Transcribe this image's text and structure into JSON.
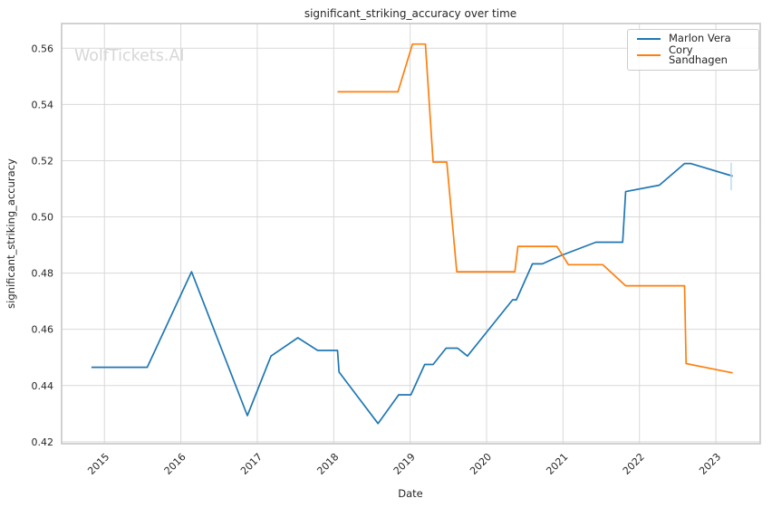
{
  "figure": {
    "title": "significant_striking_accuracy over time",
    "watermark": "WolfTickets.AI",
    "background": "#ffffff"
  },
  "legend": {
    "position": "upper right",
    "entries": [
      {
        "label": "Marlon Vera",
        "color": "#1f77b4"
      },
      {
        "label": "Cory Sandhagen",
        "color": "#ff7f0e"
      }
    ]
  },
  "chart_data": {
    "type": "line",
    "title": "significant_striking_accuracy over time",
    "xlabel": "Date",
    "ylabel": "significant_striking_accuracy",
    "xlim": [
      2014.44,
      2023.58
    ],
    "ylim": [
      0.4193,
      0.5688
    ],
    "grid": true,
    "legend_position": "upper right",
    "colors": {
      "text": "#262626",
      "grid": "#d9d9d9",
      "spine": "#c6c6c6"
    },
    "x_ticks": {
      "values": [
        2015,
        2016,
        2017,
        2018,
        2019,
        2020,
        2021,
        2022,
        2023
      ],
      "labels": [
        "2015",
        "2016",
        "2017",
        "2018",
        "2019",
        "2020",
        "2021",
        "2022",
        "2023"
      ]
    },
    "y_ticks": {
      "values": [
        0.42,
        0.44,
        0.46,
        0.48,
        0.5,
        0.52,
        0.54,
        0.56
      ],
      "labels": [
        "0.42",
        "0.44",
        "0.46",
        "0.48",
        "0.50",
        "0.52",
        "0.54",
        "0.56"
      ]
    },
    "series": [
      {
        "name": "Marlon Vera",
        "color": "#1f77b4",
        "points": [
          [
            2014.83,
            0.4465
          ],
          [
            2015.56,
            0.4465
          ],
          [
            2016.14,
            0.4805
          ],
          [
            2016.87,
            0.4293
          ],
          [
            2017.18,
            0.4505
          ],
          [
            2017.53,
            0.457
          ],
          [
            2017.79,
            0.4525
          ],
          [
            2018.05,
            0.4525
          ],
          [
            2018.07,
            0.4448
          ],
          [
            2018.58,
            0.4265
          ],
          [
            2018.85,
            0.4367
          ],
          [
            2019.01,
            0.4367
          ],
          [
            2019.19,
            0.4475
          ],
          [
            2019.3,
            0.4475
          ],
          [
            2019.47,
            0.4533
          ],
          [
            2019.62,
            0.4533
          ],
          [
            2019.75,
            0.4505
          ],
          [
            2020.34,
            0.4705
          ],
          [
            2020.39,
            0.4705
          ],
          [
            2020.6,
            0.4833
          ],
          [
            2020.73,
            0.4833
          ],
          [
            2020.95,
            0.486
          ],
          [
            2021.43,
            0.491
          ],
          [
            2021.78,
            0.491
          ],
          [
            2021.82,
            0.509
          ],
          [
            2022.26,
            0.5113
          ],
          [
            2022.59,
            0.519
          ],
          [
            2022.67,
            0.519
          ],
          [
            2023.22,
            0.5145
          ]
        ]
      },
      {
        "name": "Cory Sandhagen",
        "color": "#ff7f0e",
        "points": [
          [
            2018.05,
            0.5445
          ],
          [
            2018.84,
            0.5445
          ],
          [
            2019.03,
            0.5615
          ],
          [
            2019.2,
            0.5615
          ],
          [
            2019.3,
            0.5195
          ],
          [
            2019.48,
            0.5195
          ],
          [
            2019.61,
            0.4805
          ],
          [
            2020.37,
            0.4805
          ],
          [
            2020.41,
            0.4895
          ],
          [
            2020.92,
            0.4895
          ],
          [
            2021.07,
            0.483
          ],
          [
            2021.52,
            0.483
          ],
          [
            2021.82,
            0.4755
          ],
          [
            2022.59,
            0.4755
          ],
          [
            2022.61,
            0.4478
          ],
          [
            2023.22,
            0.4445
          ]
        ]
      }
    ],
    "end_tick_marker": {
      "series": "Marlon Vera",
      "x": 2023.2,
      "y_from": 0.5095,
      "y_to": 0.5193,
      "color": "#b8d9ee"
    }
  }
}
